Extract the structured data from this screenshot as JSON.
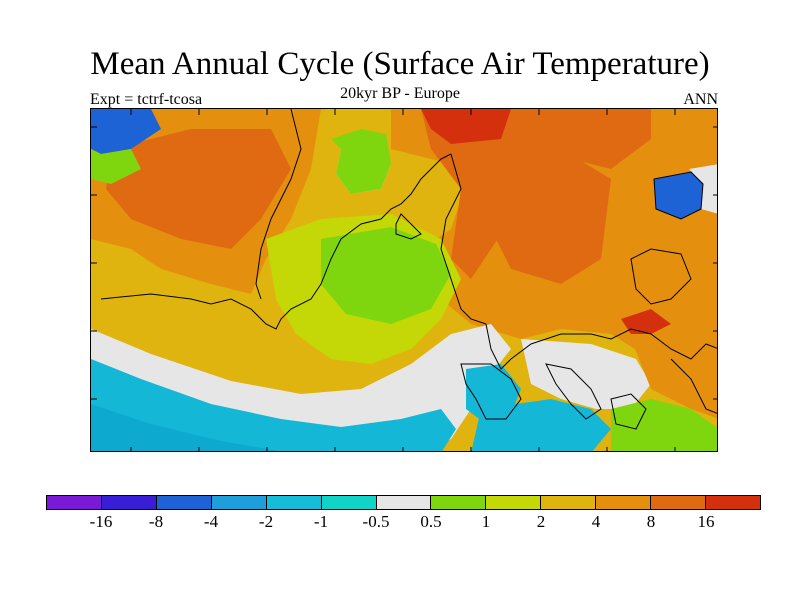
{
  "title": "Mean Annual Cycle (Surface Air Temperature)",
  "subtitle": "20kyr BP - Europe",
  "experiment_label": "Expt = tctrf-tcosa",
  "period_label": "ANN",
  "colorbar": {
    "colors": [
      "#7a1ad6",
      "#3a1ed6",
      "#1e63d6",
      "#1e9fdc",
      "#16bcd8",
      "#10d4c8",
      "#e6e6e6",
      "#7fd60e",
      "#c4d808",
      "#e0b40e",
      "#e4900e",
      "#e06a12",
      "#d4300e"
    ],
    "labels": [
      "-16",
      "-8",
      "-4",
      "-2",
      "-1",
      "-0.5",
      "0.5",
      "1",
      "2",
      "4",
      "8",
      "16"
    ]
  },
  "map_colors": {
    "ocean_cold": "#14b8d6",
    "ocean_deep": "#0ea9cf",
    "neutral": "#e6e6e6",
    "green": "#7fd60e",
    "yellow_green": "#c4d808",
    "orange_light": "#e0b40e",
    "orange": "#e4900e",
    "orange_dark": "#e06a12",
    "red": "#d4300e",
    "blue": "#1e63d6"
  }
}
